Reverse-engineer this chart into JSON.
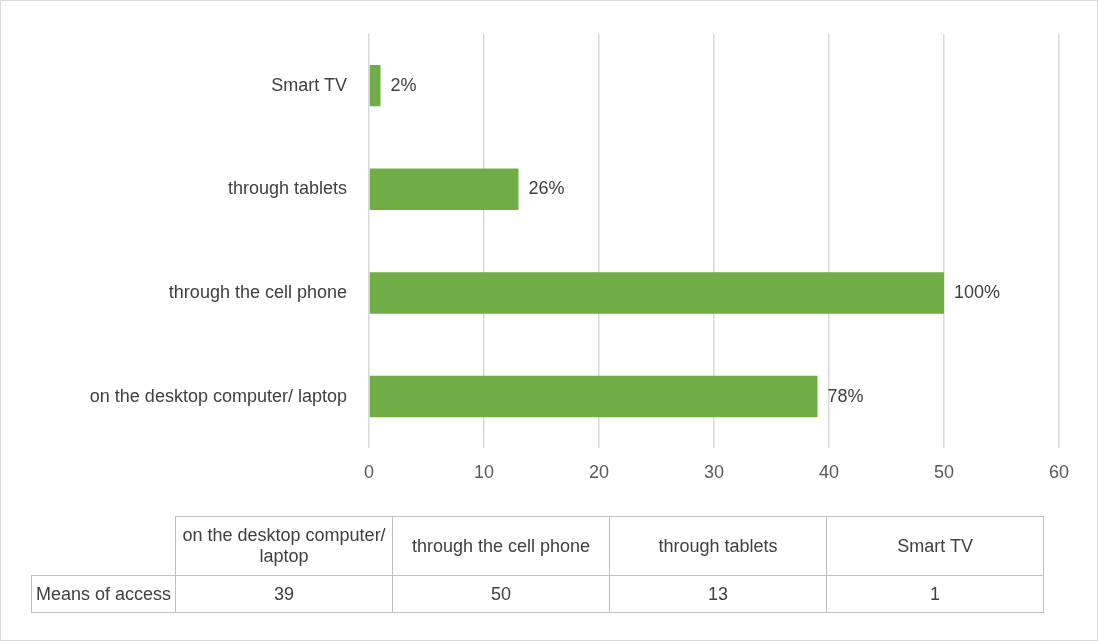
{
  "chart_data": {
    "type": "bar",
    "orientation": "horizontal",
    "categories": [
      "Smart TV",
      "through tablets",
      "through the cell phone",
      "on the desktop computer/ laptop"
    ],
    "series": [
      {
        "name": "Means of access",
        "color": "#70ad47",
        "values": [
          1,
          13,
          50,
          39
        ]
      }
    ],
    "annotations": [
      {
        "text": "2%",
        "x": 1,
        "y": "Smart TV"
      },
      {
        "text": "26%",
        "x": 13,
        "y": "through tablets"
      },
      {
        "text": "100%",
        "x": 50,
        "y": "through the cell phone"
      },
      {
        "text": "78%",
        "x": 39,
        "y": "on the desktop computer/ laptop"
      },
      "39",
      "50",
      "13",
      "1"
    ],
    "xlim": [
      0,
      60
    ],
    "xticks": [
      0,
      10,
      20,
      30,
      40,
      50,
      60
    ],
    "grid": "x",
    "legend": false
  }
}
